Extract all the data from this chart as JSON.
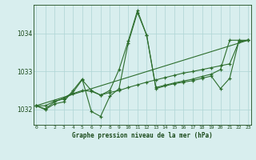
{
  "line1_x": [
    0,
    1,
    2,
    3,
    4,
    5,
    6,
    7,
    8,
    9,
    10,
    11,
    12,
    13,
    14,
    15,
    16,
    17,
    18,
    19,
    20,
    21,
    22,
    23
  ],
  "line1_y": [
    1032.1,
    1032.0,
    1032.15,
    1032.2,
    1032.5,
    1032.8,
    1031.95,
    1031.82,
    1032.35,
    1032.55,
    1033.75,
    1034.55,
    1033.95,
    1032.55,
    1032.62,
    1032.68,
    1032.72,
    1032.76,
    1032.82,
    1032.88,
    1032.55,
    1032.82,
    1033.8,
    1033.82
  ],
  "line2_x": [
    0,
    1,
    2,
    3,
    4,
    5,
    6,
    7,
    8,
    9,
    10,
    11,
    12,
    13,
    14,
    15,
    16,
    17,
    18,
    19,
    20,
    21,
    22,
    23
  ],
  "line2_y": [
    1032.1,
    1032.02,
    1032.2,
    1032.3,
    1032.45,
    1032.78,
    1032.5,
    1032.38,
    1032.5,
    1033.05,
    1033.8,
    1034.6,
    1033.95,
    1032.58,
    1032.64,
    1032.7,
    1032.75,
    1032.8,
    1032.87,
    1032.93,
    1033.05,
    1033.82,
    1033.82,
    1033.82
  ],
  "line3_x": [
    0,
    1,
    2,
    3,
    4,
    5,
    6,
    7,
    8,
    9,
    10,
    11,
    12,
    13,
    14,
    15,
    16,
    17,
    18,
    19,
    20,
    21,
    22,
    23
  ],
  "line3_y": [
    1032.1,
    1032.1,
    1032.22,
    1032.28,
    1032.42,
    1032.5,
    1032.48,
    1032.38,
    1032.45,
    1032.5,
    1032.58,
    1032.65,
    1032.72,
    1032.78,
    1032.84,
    1032.9,
    1032.96,
    1033.0,
    1033.05,
    1033.1,
    1033.15,
    1033.2,
    1033.78,
    1033.82
  ],
  "trend_x": [
    0,
    23
  ],
  "trend_y": [
    1032.1,
    1033.82
  ],
  "line_color": "#2d6e2d",
  "bg_color": "#d8eeee",
  "grid_color": "#aed4d4",
  "text_color": "#1a4a1a",
  "yticks": [
    1032,
    1033,
    1034
  ],
  "xlim": [
    -0.3,
    23.3
  ],
  "ylim": [
    1031.6,
    1034.75
  ],
  "xlabel": "Graphe pression niveau de la mer (hPa)"
}
